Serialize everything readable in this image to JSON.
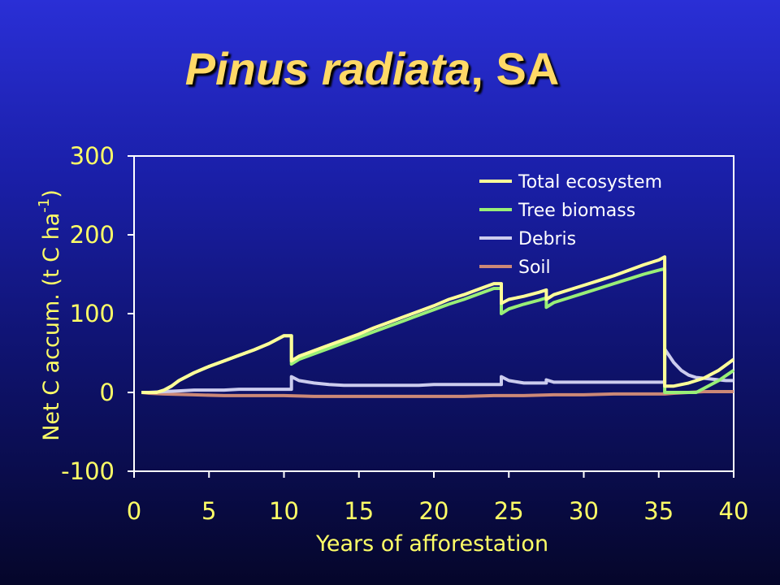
{
  "slide": {
    "title_species": "Pinus radiata",
    "title_location": ", SA"
  },
  "chart_data": {
    "type": "line",
    "title": "",
    "xlabel": "Years of afforestation",
    "ylabel": "Net C accum. (t C ha",
    "ylabel_sup": "-1",
    "ylabel_end": ")",
    "xlim": [
      0,
      40
    ],
    "ylim": [
      -100,
      300
    ],
    "xticks": [
      0,
      5,
      10,
      15,
      20,
      25,
      30,
      35,
      40
    ],
    "yticks": [
      300,
      200,
      100,
      0,
      -100
    ],
    "grid": false,
    "legend_position": "top-right",
    "series": [
      {
        "name": "Total ecosystem",
        "color": "#ffff99",
        "x": [
          0.5,
          1.5,
          2,
          2.5,
          3,
          4,
          5,
          6,
          7,
          8,
          9,
          10,
          10.5,
          10.5,
          11,
          12,
          13,
          14,
          15,
          16,
          17,
          18,
          19,
          20,
          21,
          22,
          23,
          24,
          24.5,
          24.5,
          25,
          26,
          27,
          27.5,
          27.5,
          28,
          29,
          30,
          31,
          32,
          33,
          34,
          35,
          35.4,
          35.4,
          36,
          37,
          38,
          39,
          40
        ],
        "y": [
          0,
          0,
          3,
          8,
          15,
          25,
          33,
          40,
          47,
          54,
          62,
          72,
          72,
          40,
          46,
          53,
          60,
          67,
          74,
          82,
          89,
          96,
          103,
          110,
          118,
          124,
          131,
          138,
          138,
          113,
          118,
          122,
          127,
          130,
          118,
          124,
          130,
          136,
          142,
          148,
          155,
          162,
          168,
          172,
          8,
          8,
          12,
          18,
          28,
          42
        ]
      },
      {
        "name": "Tree biomass",
        "color": "#99ee77",
        "x": [
          0.5,
          1.5,
          2,
          2.5,
          3,
          4,
          5,
          6,
          7,
          8,
          9,
          10,
          10.5,
          10.5,
          11,
          12,
          13,
          14,
          15,
          16,
          17,
          18,
          19,
          20,
          21,
          22,
          23,
          24,
          24.5,
          24.5,
          25,
          26,
          27,
          27.5,
          27.5,
          28,
          29,
          30,
          31,
          32,
          33,
          34,
          35,
          35.4,
          35.4,
          36,
          37,
          37.5,
          38,
          39,
          40
        ],
        "y": [
          0,
          0,
          3,
          8,
          15,
          25,
          33,
          40,
          47,
          54,
          62,
          72,
          72,
          36,
          42,
          49,
          56,
          63,
          70,
          77,
          84,
          91,
          98,
          105,
          112,
          118,
          125,
          132,
          132,
          100,
          106,
          112,
          117,
          120,
          108,
          114,
          120,
          126,
          132,
          138,
          144,
          150,
          155,
          157,
          0,
          0,
          0,
          0,
          5,
          15,
          28
        ]
      },
      {
        "name": "Debris",
        "color": "#ccccee",
        "x": [
          0.5,
          1,
          2,
          3,
          4,
          5,
          6,
          7,
          8,
          9,
          10,
          10.5,
          10.5,
          11,
          12,
          13,
          14,
          15,
          16,
          17,
          18,
          19,
          20,
          21,
          22,
          23,
          24,
          24.5,
          24.5,
          25,
          26,
          27,
          27.5,
          27.5,
          28,
          29,
          30,
          31,
          32,
          33,
          34,
          35,
          35.4,
          35.4,
          36,
          36.5,
          37,
          37.5,
          38,
          38.5,
          39,
          39.5,
          40
        ],
        "y": [
          0,
          0,
          1,
          2,
          3,
          3,
          3,
          4,
          4,
          4,
          4,
          4,
          20,
          15,
          12,
          10,
          9,
          9,
          9,
          9,
          9,
          9,
          10,
          10,
          10,
          10,
          10,
          10,
          20,
          15,
          12,
          12,
          12,
          16,
          13,
          13,
          13,
          13,
          13,
          13,
          13,
          13,
          13,
          55,
          38,
          28,
          22,
          19,
          18,
          17,
          16,
          15,
          15
        ]
      },
      {
        "name": "Soil",
        "color": "#cc8877",
        "x": [
          0.5,
          1,
          2,
          4,
          6,
          8,
          10,
          12,
          14,
          16,
          18,
          20,
          22,
          24,
          26,
          28,
          30,
          32,
          34,
          35.4,
          36,
          37,
          38,
          39,
          40
        ],
        "y": [
          0,
          -1,
          -2,
          -3,
          -4,
          -4,
          -4,
          -5,
          -5,
          -5,
          -5,
          -5,
          -5,
          -4,
          -4,
          -3,
          -3,
          -2,
          -2,
          -2,
          -1,
          0,
          1,
          1,
          1
        ]
      }
    ]
  }
}
